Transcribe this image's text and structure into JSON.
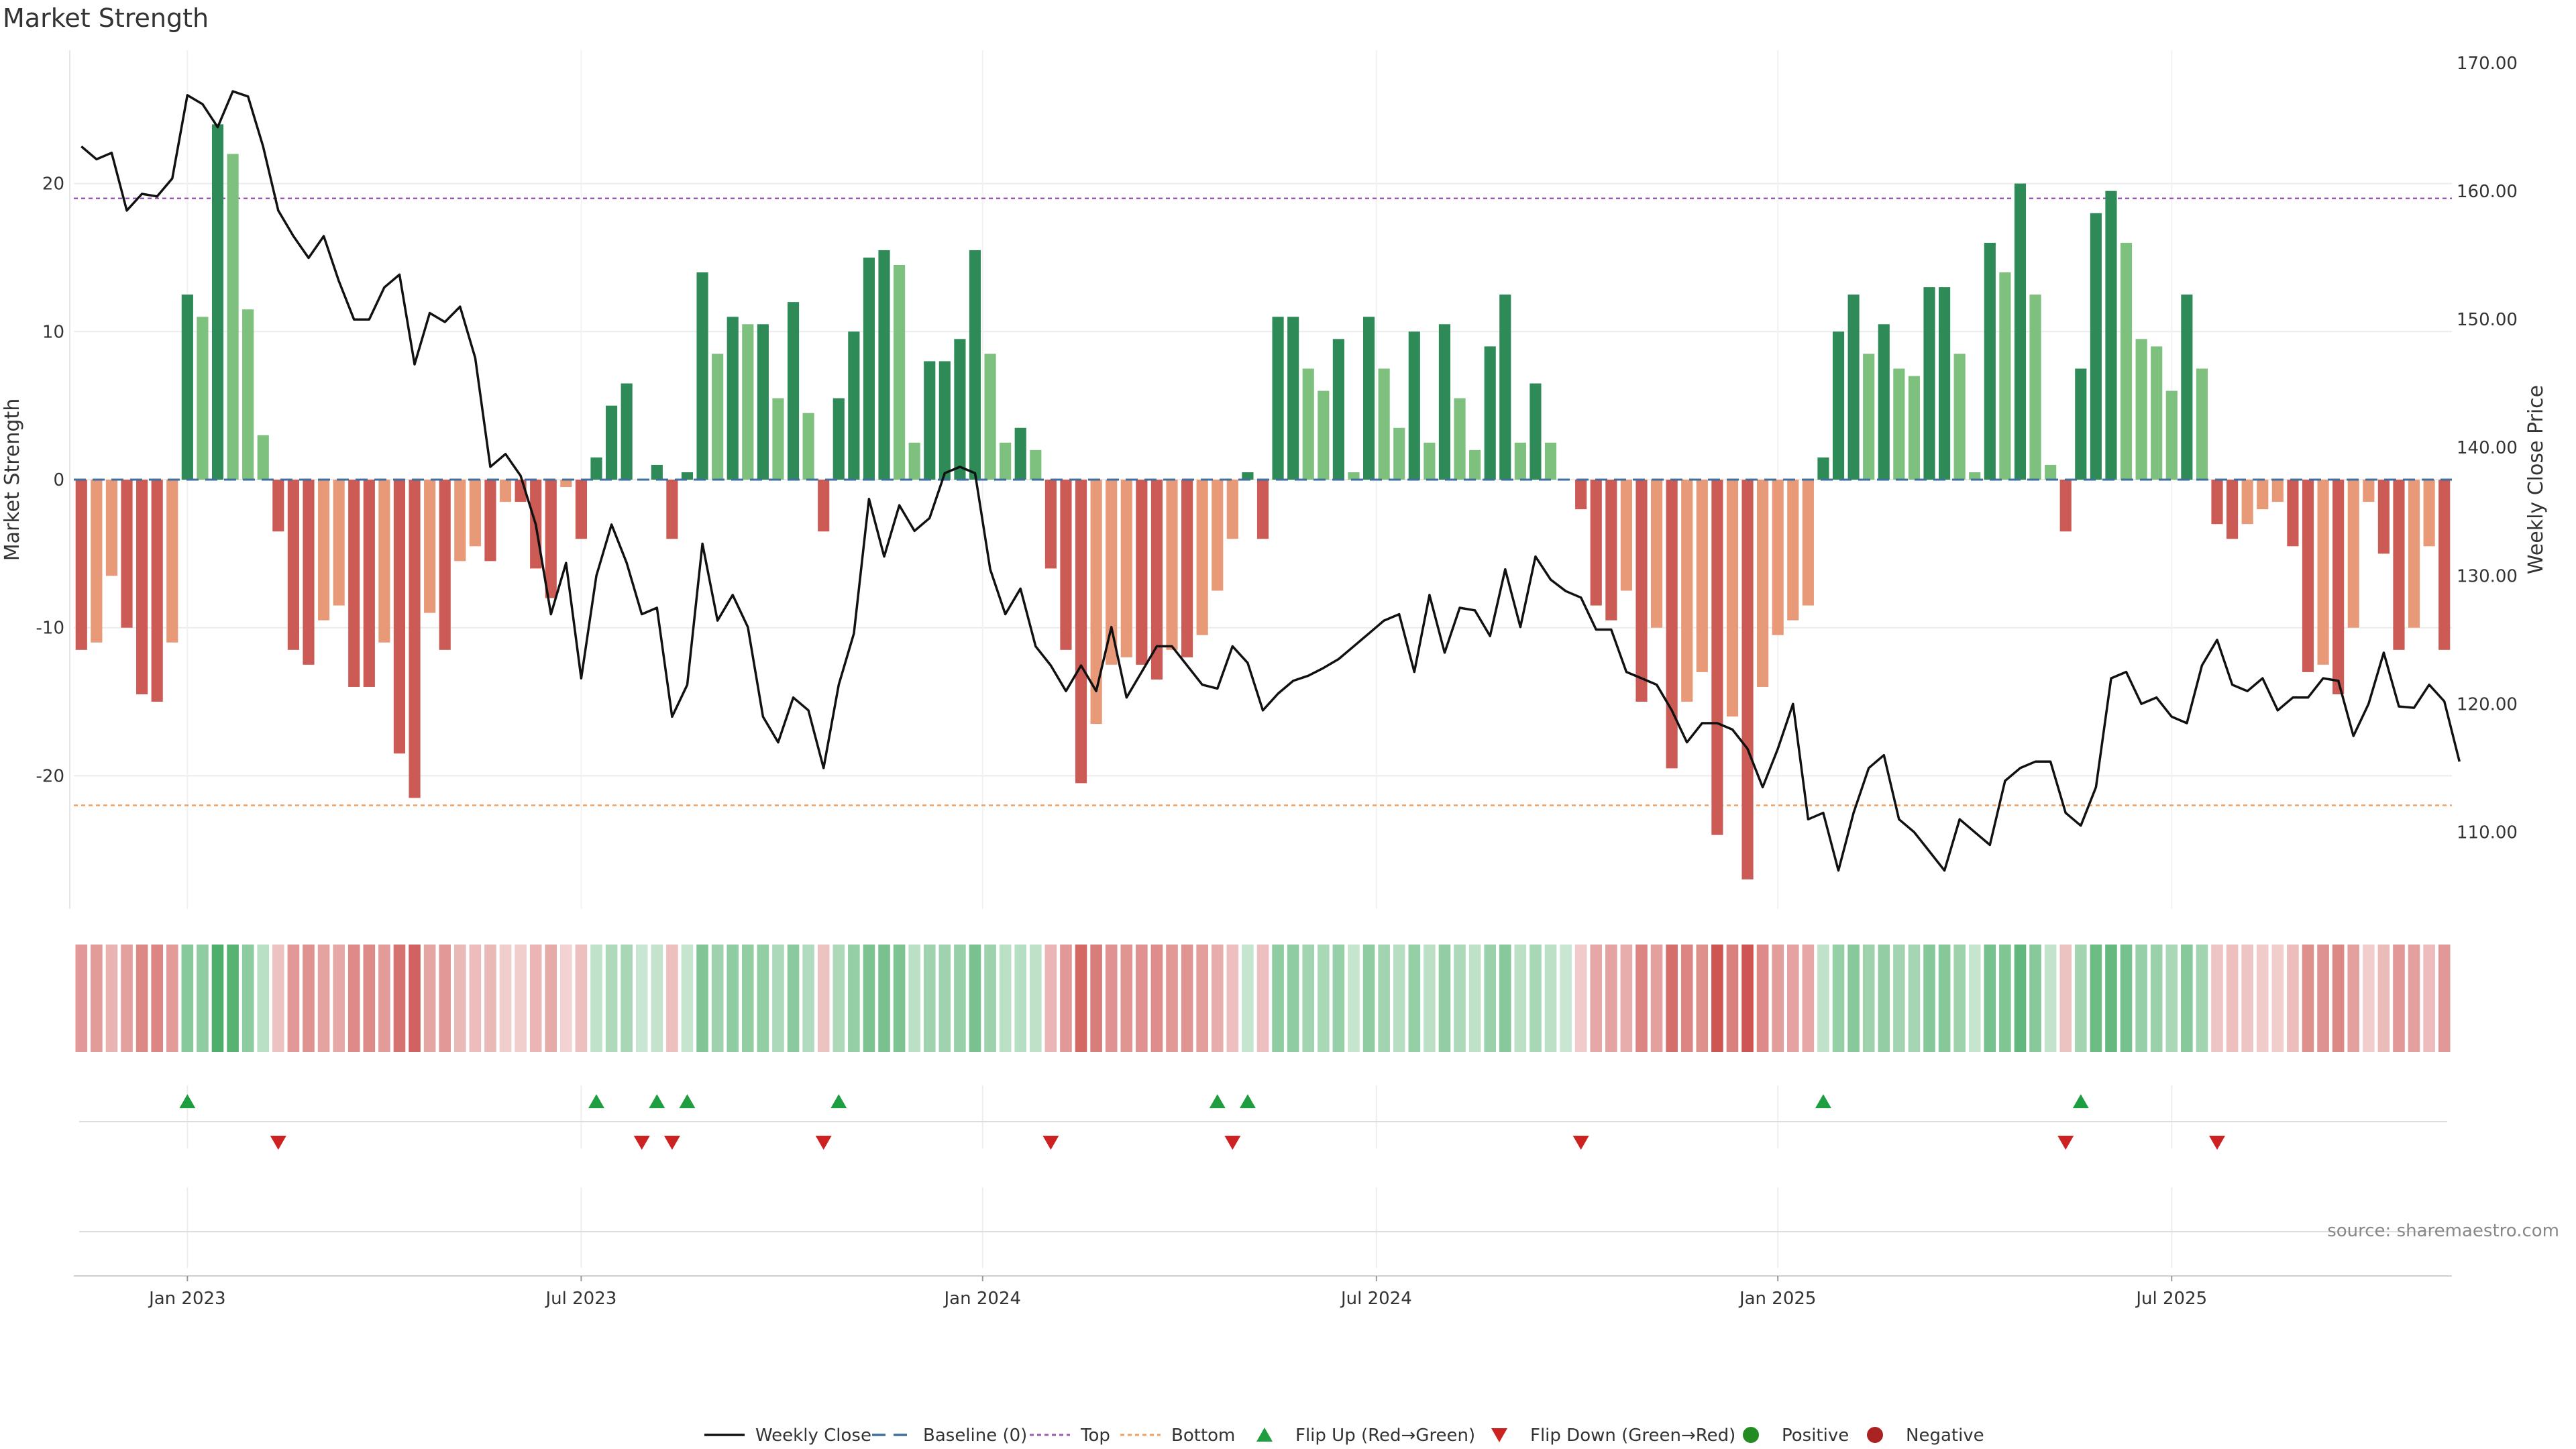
{
  "chart_data": {
    "type": "bar",
    "title": "Market Strength",
    "ylabel_left": "Market Strength",
    "ylabel_right": "Weekly Close Price",
    "source": "source: sharemaestro.com",
    "ylim_left": [
      -29,
      29
    ],
    "ylim_right": [
      104,
      171
    ],
    "left_ticks": [
      "20",
      "10",
      "0",
      "-10",
      "-20"
    ],
    "left_tick_values": [
      20,
      10,
      0,
      -10,
      -20
    ],
    "right_ticks": [
      "170.00",
      "160.00",
      "150.00",
      "140.00",
      "130.00",
      "120.00",
      "110.00"
    ],
    "right_tick_values": [
      170,
      160,
      150,
      140,
      130,
      120,
      110
    ],
    "x_ticks": [
      "Jan 2023",
      "Jul 2023",
      "Jan 2024",
      "Jul 2024",
      "Jan 2025",
      "Jul 2025"
    ],
    "x_tick_index": [
      7.5,
      33.5,
      60,
      86,
      112.5,
      138.5
    ],
    "top_level": 19,
    "bottom_level": -22,
    "values": [
      -11.5,
      -11,
      -6.5,
      -10,
      -14.5,
      -15,
      -11,
      12.5,
      11,
      24,
      22,
      11.5,
      3,
      -3.5,
      -11.5,
      -12.5,
      -9.5,
      -8.5,
      -14,
      -14,
      -11,
      -18.5,
      -21.5,
      -9,
      -11.5,
      -5.5,
      -4.5,
      -5.5,
      -1.5,
      -1.5,
      -6,
      -8,
      -0.5,
      -4,
      1.5,
      5,
      6.5,
      0,
      1,
      -4,
      0.5,
      14,
      8.5,
      11,
      10.5,
      10.5,
      5.5,
      12,
      4.5,
      -3.5,
      5.5,
      10,
      15,
      15.5,
      14.5,
      2.5,
      8,
      8,
      9.5,
      15.5,
      8.5,
      2.5,
      3.5,
      2,
      -6,
      -11.5,
      -20.5,
      -16.5,
      -12.5,
      -12,
      -12.5,
      -13.5,
      -11.5,
      -12,
      -10.5,
      -7.5,
      -4,
      0.5,
      -4,
      11,
      11,
      7.5,
      6,
      9.5,
      0.5,
      11,
      7.5,
      3.5,
      10,
      2.5,
      10.5,
      5.5,
      2,
      9,
      12.5,
      2.5,
      6.5,
      2.5,
      0,
      -2,
      -8.5,
      -9.5,
      -7.5,
      -15,
      -10,
      -19.5,
      -15,
      -13,
      -24,
      -16,
      -27,
      -14,
      -10.5,
      -9.5,
      -8.5,
      1.5,
      10,
      12.5,
      8.5,
      10.5,
      7.5,
      7,
      13,
      13,
      8.5,
      0.5,
      16,
      14,
      20,
      12.5,
      1,
      -3.5,
      7.5,
      18,
      19.5,
      16,
      9.5,
      9,
      6,
      12.5,
      7.5,
      -3,
      -4,
      -3,
      -2,
      -1.5,
      -4.5,
      -13,
      -12.5,
      -14.5,
      -10,
      -1.5,
      -5,
      -11.5,
      -10,
      -4.5,
      -11.5
    ],
    "price": [
      163.5,
      162.5,
      163,
      158.5,
      159.8,
      159.6,
      161,
      167.5,
      166.8,
      165,
      167.8,
      167.4,
      163.5,
      158.5,
      156.5,
      154.8,
      156.5,
      153,
      150,
      150,
      152.5,
      153.5,
      146.5,
      150.5,
      149.8,
      151,
      147,
      138.5,
      139.5,
      137.8,
      134,
      127,
      131,
      122,
      130,
      134,
      131,
      127,
      127.5,
      119,
      121.5,
      132.5,
      126.5,
      128.5,
      126,
      119,
      117,
      120.5,
      119.5,
      115,
      121.5,
      125.5,
      136,
      131.5,
      135.5,
      133.5,
      134.5,
      138,
      138.5,
      138,
      130.5,
      127,
      129,
      124.5,
      123,
      121,
      123,
      121,
      126,
      120.5,
      122.5,
      124.5,
      124.5,
      123,
      121.5,
      121.2,
      124.5,
      123.2,
      119.5,
      120.8,
      121.8,
      122.2,
      122.8,
      123.5,
      124.5,
      125.5,
      126.5,
      127,
      122.5,
      128.5,
      124,
      127.5,
      127.3,
      125.3,
      130.5,
      126,
      131.5,
      129.7,
      128.8,
      128.3,
      125.8,
      125.8,
      122.5,
      122,
      121.5,
      119.5,
      117,
      118.5,
      118.5,
      118,
      116.5,
      113.5,
      116.5,
      120,
      111,
      111.5,
      107,
      111.5,
      115,
      116,
      111,
      110,
      108.5,
      107,
      111,
      110,
      109,
      114,
      115,
      115.5,
      115.5,
      111.5,
      110.5,
      113.5,
      122,
      122.5,
      120,
      120.5,
      119,
      118.5,
      123,
      125,
      121.5,
      121,
      122,
      119.5,
      120.5,
      120.5,
      122,
      121.8,
      117.5,
      120,
      124,
      119.8,
      119.7,
      121.5,
      120.2,
      115.5
    ],
    "flip_up_index": [
      7,
      34,
      38,
      40,
      50,
      75,
      77,
      115,
      132
    ],
    "flip_down_index": [
      13,
      37,
      39,
      49,
      64,
      76,
      99,
      131,
      141
    ],
    "legend": [
      "Weekly Close",
      "Baseline (0)",
      "Top",
      "Bottom",
      "Flip Up (Red→Green)",
      "Flip Down (Green→Red)",
      "Positive",
      "Negative"
    ],
    "colors": {
      "pos_strong": "#2e8b57",
      "pos_light": "#7ec07e",
      "neg_strong": "#cc5a55",
      "neg_light": "#e89a78",
      "price": "#111111",
      "baseline": "#3f6fa0",
      "top": "#9b59b6",
      "bottom": "#f0a060",
      "flip_up": "#1e9e40",
      "flip_down": "#cc2222",
      "legend_pos": "#228b22",
      "legend_neg": "#aa2222"
    },
    "grid": true,
    "legend_position": "bottom-center"
  }
}
